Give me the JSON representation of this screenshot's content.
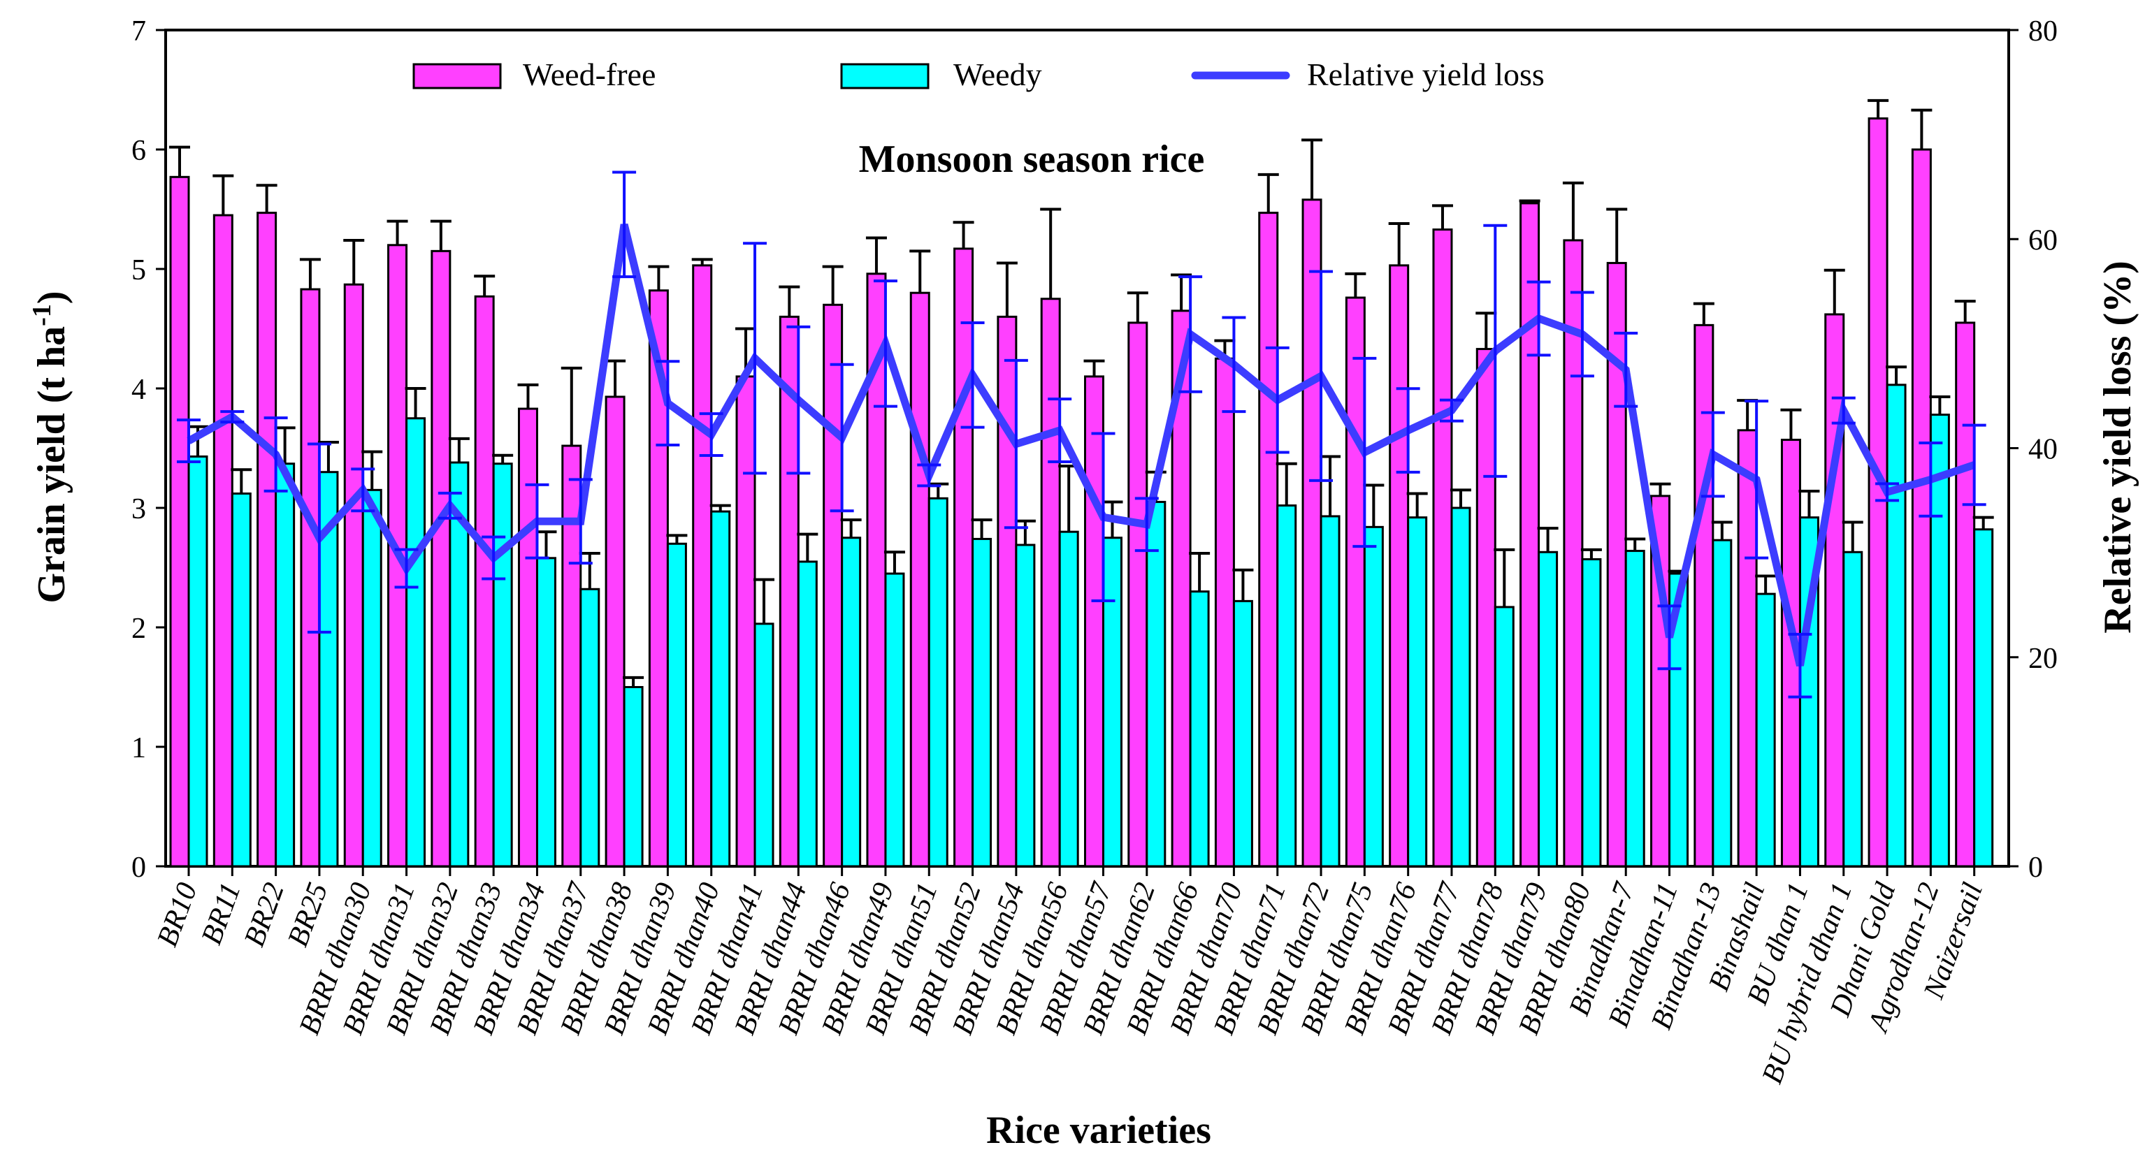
{
  "chart_data": {
    "type": "bar",
    "title": "Monsoon season rice",
    "xlabel": "Rice varieties",
    "ylabel": "Grain yield (t ha",
    "ylabel_sup": "-1",
    "ylabel_close": ")",
    "y2label": "Relative yield loss (%)",
    "ylim": [
      0,
      7
    ],
    "y2lim": [
      0,
      80
    ],
    "yticks": [
      "0",
      "1",
      "2",
      "3",
      "4",
      "5",
      "6",
      "7"
    ],
    "y2ticks": [
      "0",
      "20",
      "40",
      "60",
      "80"
    ],
    "legend_position": "top",
    "colors": {
      "weed_free": "#ff40ff",
      "weedy": "#00ffff",
      "ryl": "#3c3cff",
      "ryl_err": "#1010ff",
      "err": "#000000"
    },
    "categories": [
      "BR10",
      "BR11",
      "BR22",
      "BR25",
      "BRRI dhan30",
      "BRRI dhan31",
      "BRRI dhan32",
      "BRRI dhan33",
      "BRRI dhan34",
      "BRRI dhan37",
      "BRRI dhan38",
      "BRRI dhan39",
      "BRRI dhan40",
      "BRRI dhan41",
      "BRRI dhan44",
      "BRRI dhan46",
      "BRRI dhan49",
      "BRRI dhan51",
      "BRRI dhan52",
      "BRRI dhan54",
      "BRRI dhan56",
      "BRRI dhan57",
      "BRRI dhan62",
      "BRRI dhan66",
      "BRRI dhan70",
      "BRRI dhan71",
      "BRRI dhan72",
      "BRRI dhan75",
      "BRRI dhan76",
      "BRRI dhan77",
      "BRRI dhan78",
      "BRRI dhan79",
      "BRRI dhan80",
      "Binadhan-7",
      "Binadhan-11",
      "Binadhan-13",
      "Binashail",
      "BU dhan 1",
      "BU hybrid dhan 1",
      "Dhani Gold",
      "Agrodhan-12",
      "Naizersail"
    ],
    "series": [
      {
        "name": "Weed-free",
        "axis": "left",
        "values": [
          5.77,
          5.45,
          5.47,
          4.83,
          4.87,
          5.2,
          5.15,
          4.77,
          3.83,
          3.52,
          3.93,
          4.82,
          5.03,
          4.1,
          4.6,
          4.7,
          4.96,
          4.8,
          5.17,
          4.6,
          4.75,
          4.1,
          4.55,
          4.65,
          4.25,
          5.47,
          5.58,
          4.76,
          5.03,
          5.33,
          4.33,
          5.55,
          5.24,
          5.05,
          3.1,
          4.53,
          3.65,
          3.57,
          4.62,
          6.26,
          6.0,
          4.55
        ],
        "errors": [
          0.25,
          0.33,
          0.23,
          0.25,
          0.37,
          0.2,
          0.25,
          0.17,
          0.2,
          0.65,
          0.3,
          0.2,
          0.05,
          0.4,
          0.25,
          0.32,
          0.3,
          0.35,
          0.22,
          0.45,
          0.75,
          0.13,
          0.25,
          0.3,
          0.15,
          0.32,
          0.5,
          0.2,
          0.35,
          0.2,
          0.3,
          0.02,
          0.48,
          0.45,
          0.1,
          0.18,
          0.25,
          0.25,
          0.37,
          0.15,
          0.33,
          0.18
        ]
      },
      {
        "name": "Weedy",
        "axis": "left",
        "values": [
          3.43,
          3.12,
          3.37,
          3.3,
          3.15,
          3.75,
          3.38,
          3.37,
          2.58,
          2.32,
          1.5,
          2.7,
          2.97,
          2.03,
          2.55,
          2.75,
          2.45,
          3.08,
          2.74,
          2.69,
          2.8,
          2.75,
          3.05,
          2.3,
          2.22,
          3.02,
          2.93,
          2.84,
          2.92,
          3.0,
          2.17,
          2.63,
          2.57,
          2.64,
          2.45,
          2.73,
          2.28,
          2.92,
          2.63,
          4.03,
          3.78,
          2.82
        ],
        "errors": [
          0.25,
          0.2,
          0.3,
          0.25,
          0.32,
          0.25,
          0.2,
          0.07,
          0.22,
          0.3,
          0.08,
          0.07,
          0.05,
          0.37,
          0.23,
          0.15,
          0.18,
          0.12,
          0.16,
          0.2,
          0.55,
          0.3,
          0.25,
          0.32,
          0.26,
          0.35,
          0.5,
          0.35,
          0.2,
          0.15,
          0.48,
          0.2,
          0.08,
          0.1,
          0.02,
          0.15,
          0.15,
          0.22,
          0.25,
          0.15,
          0.15,
          0.1
        ]
      },
      {
        "name": "Relative yield loss",
        "axis": "right",
        "type": "line",
        "values": [
          40.7,
          43,
          39.4,
          31.4,
          36,
          28.5,
          34.5,
          29.5,
          33,
          33,
          61.4,
          44.3,
          41.3,
          48.6,
          44.6,
          41,
          50,
          37.4,
          47,
          40.4,
          41.7,
          33.4,
          32.7,
          50.9,
          48,
          44.6,
          46.9,
          39.6,
          41.7,
          43.6,
          49.3,
          52.4,
          50.9,
          47.5,
          21.9,
          39.4,
          37,
          19.2,
          43.6,
          35.8,
          37,
          38.4
        ],
        "errors": [
          2,
          0.5,
          3.5,
          9,
          2,
          1.8,
          1.2,
          2,
          3.5,
          4,
          5,
          4,
          2,
          11,
          7,
          7,
          6,
          1,
          5,
          8,
          3,
          8,
          2.5,
          5.5,
          4.5,
          5,
          10,
          9,
          4,
          1,
          12,
          3.5,
          4,
          3.5,
          3,
          4,
          7.5,
          3,
          1.2,
          0.8,
          3.5,
          3.8
        ]
      }
    ]
  }
}
